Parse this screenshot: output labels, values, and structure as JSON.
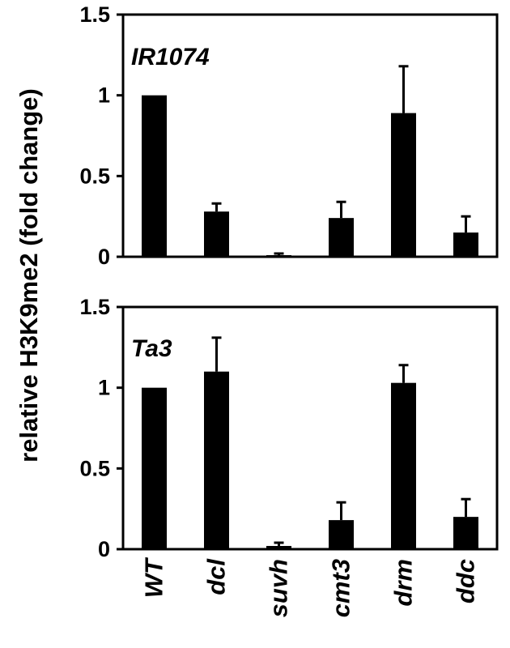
{
  "chart_data": {
    "type": "bar",
    "ylabel": "relative H3K9me2 (fold change)",
    "categories": [
      "WT",
      "dcl",
      "suvh",
      "cmt3",
      "drm",
      "ddc"
    ],
    "panels": [
      {
        "label": "IR1074",
        "ylim": [
          0,
          1.5
        ],
        "yticks": [
          "0",
          "0.5",
          "1",
          "1.5"
        ],
        "values": [
          1.0,
          0.28,
          0.01,
          0.24,
          0.89,
          0.15
        ],
        "errors": [
          0,
          0.05,
          0.01,
          0.1,
          0.29,
          0.1
        ]
      },
      {
        "label": "Ta3",
        "ylim": [
          0,
          1.5
        ],
        "yticks": [
          "0",
          "0.5",
          "1",
          "1.5"
        ],
        "values": [
          1.0,
          1.1,
          0.02,
          0.18,
          1.03,
          0.2
        ],
        "errors": [
          0,
          0.21,
          0.02,
          0.11,
          0.11,
          0.11
        ]
      }
    ],
    "bar_color": "#000000",
    "grid": false,
    "legend": "none"
  }
}
